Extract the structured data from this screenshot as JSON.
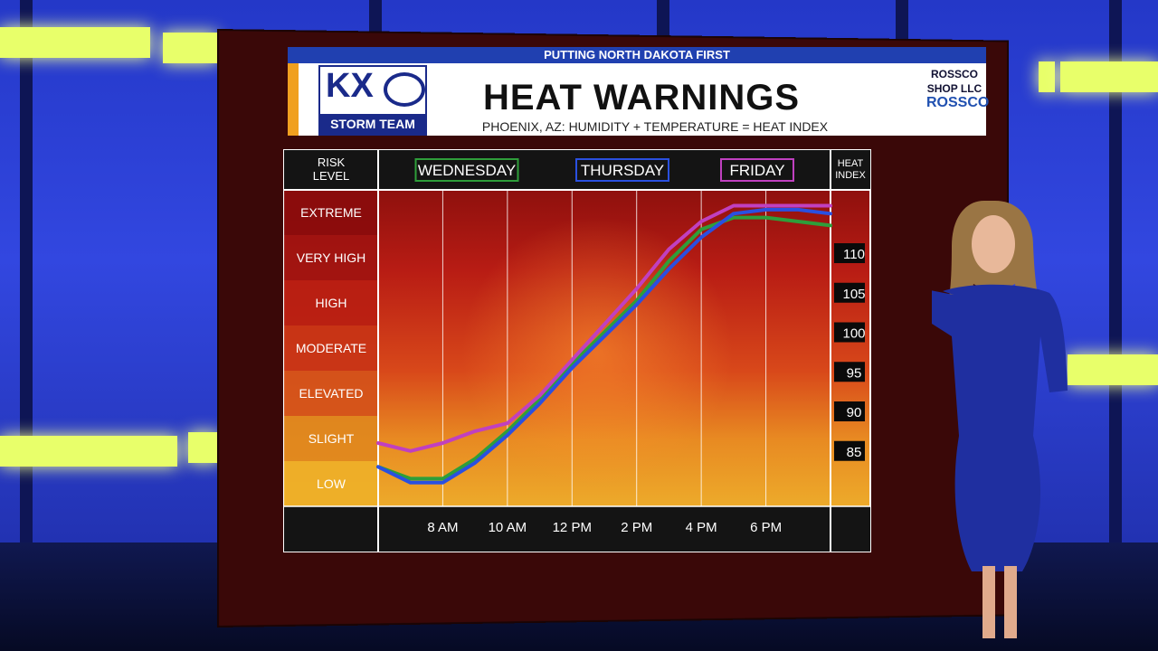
{
  "banner": {
    "tagline": "PUTTING NORTH DAKOTA FIRST",
    "title": "HEAT WARNINGS",
    "subtitle": "PHOENIX, AZ: HUMIDITY + TEMPERATURE = HEAT INDEX",
    "logo_kx": "KX",
    "logo_team": "STORM TEAM",
    "sponsor_line1": "ROSSCO",
    "sponsor_line2": "SHOP LLC",
    "sponsor_line3": "ROSSCO"
  },
  "chart_data": {
    "type": "line",
    "title": "HEAT WARNINGS",
    "risk_header": "RISK LEVEL",
    "heat_header": "HEAT INDEX",
    "risk_levels": [
      "EXTREME",
      "VERY HIGH",
      "HIGH",
      "MODERATE",
      "ELEVATED",
      "SLIGHT",
      "LOW"
    ],
    "x_ticks": [
      "8 AM",
      "10 AM",
      "12 PM",
      "2 PM",
      "4 PM",
      "6 PM"
    ],
    "y_ticks": [
      "110",
      "105",
      "100",
      "95",
      "90",
      "85"
    ],
    "y_tick_values": [
      110,
      105,
      100,
      95,
      90,
      85
    ],
    "ylim": [
      78,
      118
    ],
    "xlim": [
      6,
      20
    ],
    "series": [
      {
        "name": "WEDNESDAY",
        "color": "#2e9e3a",
        "x": [
          6,
          7,
          8,
          9,
          10,
          11,
          12,
          13,
          14,
          15,
          16,
          17,
          18,
          19,
          20
        ],
        "values": [
          83,
          81.5,
          81.5,
          84,
          87.5,
          91.5,
          96,
          100,
          104,
          109,
          113,
          114.5,
          114.5,
          114,
          113.5
        ]
      },
      {
        "name": "THURSDAY",
        "color": "#2a50e0",
        "x": [
          6,
          7,
          8,
          9,
          10,
          11,
          12,
          13,
          14,
          15,
          16,
          17,
          18,
          19,
          20
        ],
        "values": [
          83,
          81,
          81,
          83.5,
          87,
          91,
          95.5,
          99.5,
          103.5,
          108,
          112,
          115,
          115.5,
          115.5,
          115
        ]
      },
      {
        "name": "FRIDAY",
        "color": "#c040c0",
        "x": [
          6,
          7,
          8,
          9,
          10,
          11,
          12,
          13,
          14,
          15,
          16,
          17,
          18,
          19,
          20
        ],
        "values": [
          86,
          85,
          86,
          87.5,
          88.5,
          92,
          96.5,
          101,
          105.5,
          110.5,
          114,
          116,
          116,
          116,
          116
        ]
      }
    ]
  }
}
